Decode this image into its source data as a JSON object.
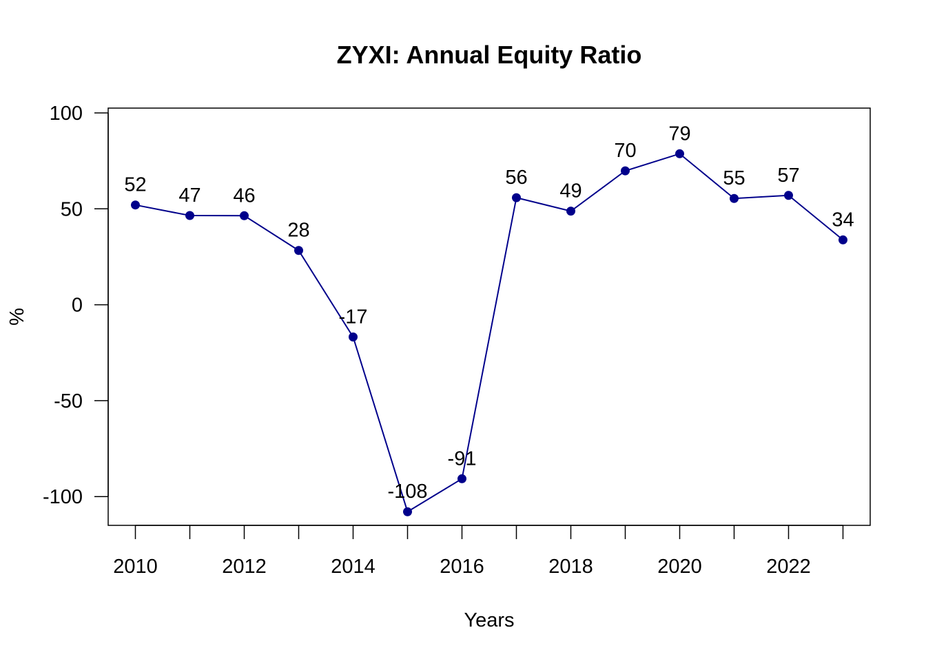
{
  "chart_data": {
    "type": "line",
    "title": "ZYXI: Annual Equity Ratio",
    "xlabel": "Years",
    "ylabel": "%",
    "x": [
      2010,
      2011,
      2012,
      2013,
      2014,
      2015,
      2016,
      2017,
      2018,
      2019,
      2020,
      2021,
      2022,
      2023
    ],
    "series": [
      {
        "values": [
          52,
          46.5,
          46.4,
          28.3,
          -16.8,
          -107.9,
          -90.7,
          55.8,
          48.8,
          69.8,
          78.7,
          55.4,
          57.0,
          33.8
        ],
        "labels": [
          "52",
          "47",
          "46",
          "28",
          "-17",
          "-108",
          "-91",
          "56",
          "49",
          "70",
          "79",
          "55",
          "57",
          "34"
        ],
        "color": "#00008B"
      }
    ],
    "xticks": [
      "2010",
      "2012",
      "2014",
      "2016",
      "2018",
      "2020",
      "2022"
    ],
    "yticks": [
      "-100",
      "-50",
      "0",
      "50",
      "100"
    ],
    "xlim": [
      2009.5,
      2023.5
    ],
    "ylim": [
      -115,
      102.5
    ],
    "grid": false,
    "legend": "none"
  }
}
